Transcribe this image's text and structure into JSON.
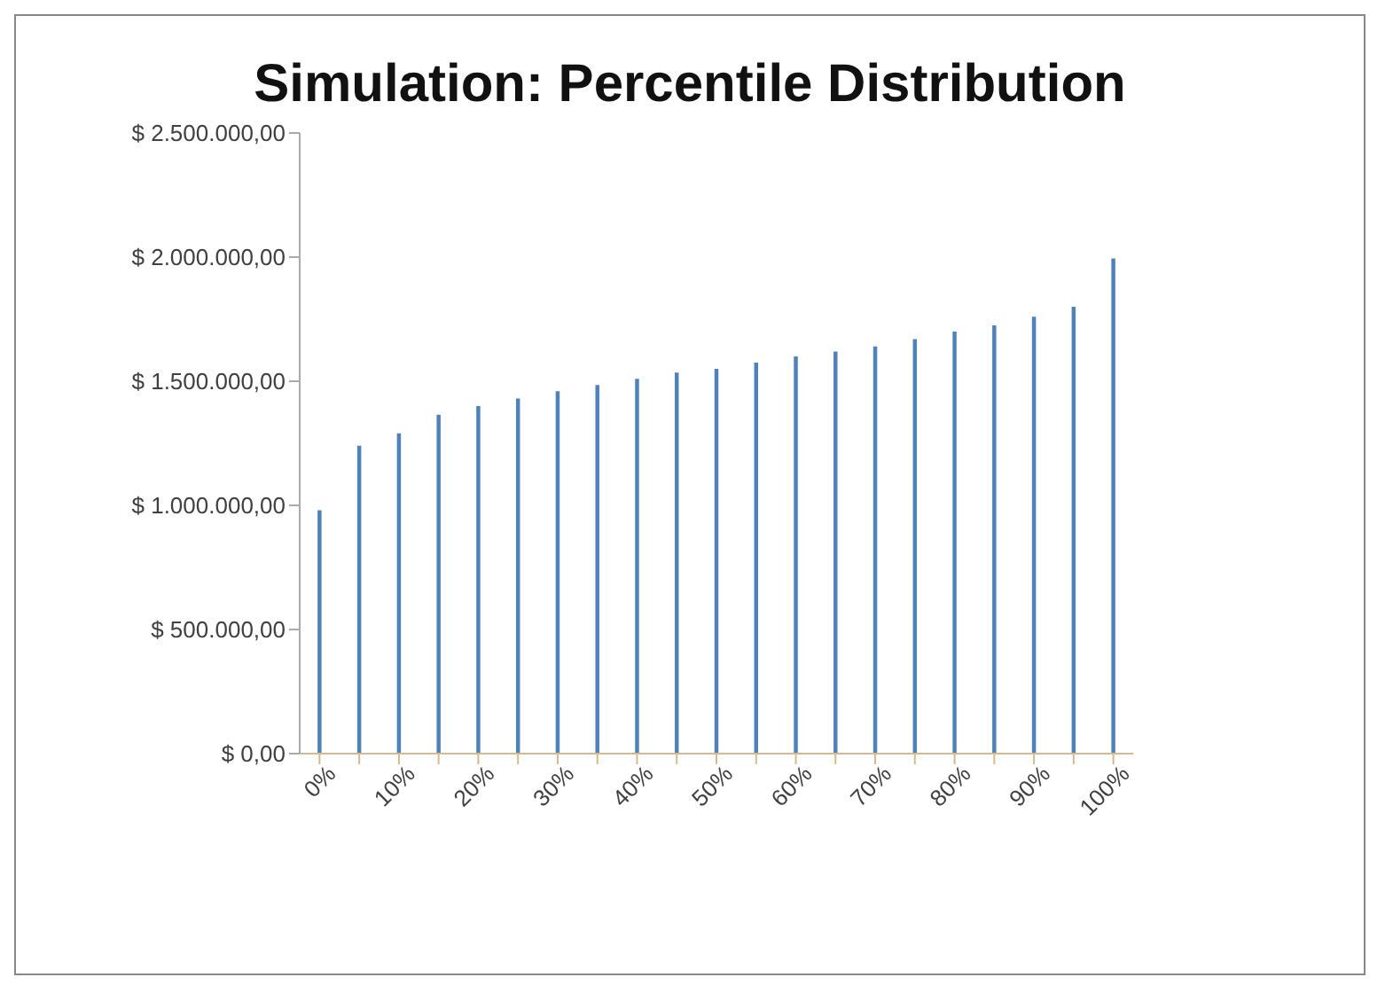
{
  "chart_data": {
    "type": "bar",
    "title": "Simulation: Percentile Distribution",
    "categories": [
      "0%",
      null,
      "10%",
      null,
      "20%",
      null,
      "30%",
      null,
      "40%",
      null,
      "50%",
      null,
      "60%",
      null,
      "70%",
      null,
      "80%",
      null,
      "90%",
      null,
      "100%"
    ],
    "values": [
      980000,
      1240000,
      1290000,
      1365000,
      1400000,
      1430000,
      1460000,
      1485000,
      1510000,
      1535000,
      1550000,
      1575000,
      1600000,
      1620000,
      1640000,
      1670000,
      1700000,
      1725000,
      1760000,
      1800000,
      1995000
    ],
    "color": "#4f81bd",
    "ylim": [
      0,
      2500000
    ],
    "yticks": [
      {
        "value": 0,
        "label": "$ 0,00"
      },
      {
        "value": 500000,
        "label": "$ 500.000,00"
      },
      {
        "value": 1000000,
        "label": "$ 1.000.000,00"
      },
      {
        "value": 1500000,
        "label": "$ 1.500.000,00"
      },
      {
        "value": 2000000,
        "label": "$ 2.000.000,00"
      },
      {
        "value": 2500000,
        "label": "$ 2.500.000,00"
      }
    ],
    "grid": false,
    "legend": false
  }
}
